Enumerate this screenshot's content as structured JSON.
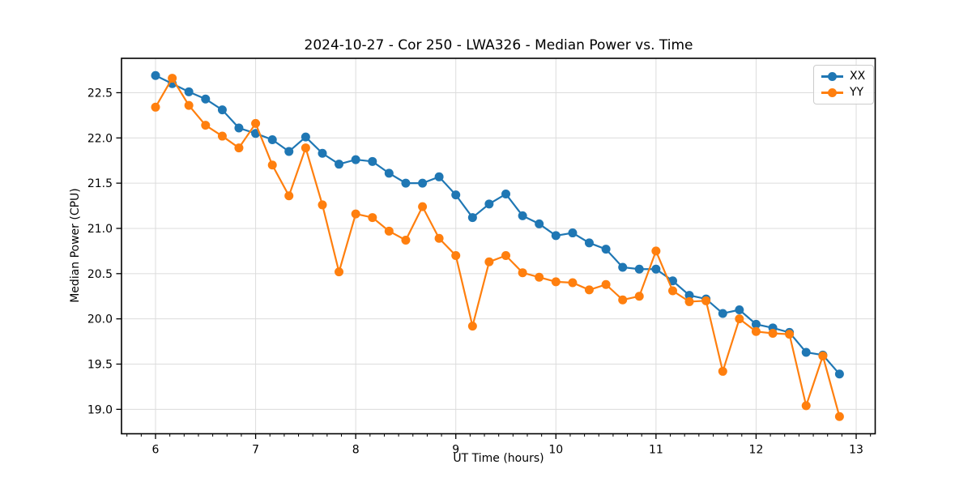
{
  "chart_data": {
    "type": "line",
    "title": "2024-10-27 - Cor 250 - LWA326 - Median Power vs. Time",
    "xlabel": "UT Time (hours)",
    "ylabel": "Median Power (CPU)",
    "xlim": [
      5.66,
      13.19
    ],
    "ylim": [
      18.73,
      22.88
    ],
    "x_ticks": [
      6,
      7,
      8,
      9,
      10,
      11,
      12,
      13
    ],
    "y_ticks": [
      19.0,
      19.5,
      20.0,
      20.5,
      21.0,
      21.5,
      22.0,
      22.5
    ],
    "x_minor_divisions": 7,
    "grid": "major-both",
    "grid_color": "#dcdcdc",
    "legend_position": "upper right",
    "marker": "circle",
    "x": [
      6.0,
      6.167,
      6.333,
      6.5,
      6.667,
      6.833,
      7.0,
      7.167,
      7.333,
      7.5,
      7.667,
      7.833,
      8.0,
      8.167,
      8.333,
      8.5,
      8.667,
      8.833,
      9.0,
      9.167,
      9.333,
      9.5,
      9.667,
      9.833,
      10.0,
      10.167,
      10.333,
      10.5,
      10.667,
      10.833,
      11.0,
      11.167,
      11.333,
      11.5,
      11.667,
      11.833,
      12.0,
      12.167,
      12.333,
      12.5,
      12.667,
      12.833
    ],
    "series": [
      {
        "name": "XX",
        "color": "#1f77b4",
        "values": [
          22.69,
          22.6,
          22.51,
          22.43,
          22.31,
          22.11,
          22.05,
          21.98,
          21.85,
          22.01,
          21.83,
          21.71,
          21.76,
          21.74,
          21.61,
          21.5,
          21.5,
          21.57,
          21.37,
          21.12,
          21.27,
          21.38,
          21.14,
          21.05,
          20.92,
          20.95,
          20.84,
          20.77,
          20.57,
          20.55,
          20.55,
          20.42,
          20.26,
          20.22,
          20.06,
          20.1,
          19.94,
          19.9,
          19.85,
          19.63,
          19.6,
          19.39
        ]
      },
      {
        "name": "YY",
        "color": "#ff7f0e",
        "values": [
          22.34,
          22.66,
          22.36,
          22.14,
          22.02,
          21.89,
          22.16,
          21.7,
          21.36,
          21.89,
          21.26,
          20.52,
          21.16,
          21.12,
          20.97,
          20.87,
          21.24,
          20.89,
          20.7,
          19.92,
          20.63,
          20.7,
          20.51,
          20.46,
          20.41,
          20.4,
          20.32,
          20.38,
          20.21,
          20.25,
          20.75,
          20.31,
          20.19,
          20.2,
          19.42,
          20.0,
          19.86,
          19.84,
          19.83,
          19.04,
          19.59,
          18.92
        ]
      }
    ]
  }
}
